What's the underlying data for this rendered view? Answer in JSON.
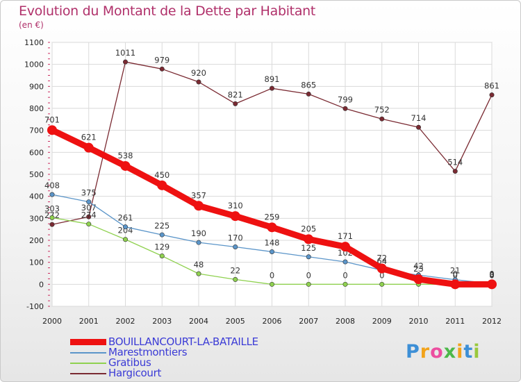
{
  "title": "Evolution du Montant de la Dette par Habitant",
  "unit": "(en €)",
  "chart_data": {
    "type": "line",
    "x": [
      "2000",
      "2001",
      "2002",
      "2003",
      "2004",
      "2005",
      "2006",
      "2007",
      "2008",
      "2009",
      "2010",
      "2011",
      "2012"
    ],
    "ylim": [
      -100,
      1100
    ],
    "yticks": [
      -100,
      0,
      100,
      200,
      300,
      400,
      500,
      600,
      700,
      800,
      900,
      1000,
      1100
    ],
    "grid": true,
    "legend_position": "bottom-left",
    "series": [
      {
        "name": "Hargicourt",
        "color": "#7a2a32",
        "values": [
          272,
          307,
          1011,
          979,
          920,
          821,
          891,
          865,
          799,
          752,
          714,
          514,
          861
        ],
        "labels": [
          "272",
          "307",
          "1011",
          "979",
          "920",
          "821",
          "891",
          "865",
          "799",
          "752",
          "714",
          "514",
          "861"
        ]
      },
      {
        "name": "Gratibus",
        "color": "#8fd14f",
        "values": [
          303,
          274,
          204,
          129,
          48,
          22,
          0,
          0,
          0,
          0,
          0,
          0,
          0
        ],
        "labels": [
          "303",
          "274",
          "204",
          "129",
          "48",
          "22",
          "0",
          "0",
          "0",
          "0",
          "0",
          "0",
          "0"
        ]
      },
      {
        "name": "Marestmontiers",
        "color": "#5b95c9",
        "values": [
          408,
          375,
          261,
          225,
          190,
          170,
          148,
          125,
          102,
          64,
          42,
          21,
          3
        ],
        "labels": [
          "408",
          "375",
          "261",
          "225",
          "190",
          "170",
          "148",
          "125",
          "102",
          "64",
          "42",
          "21",
          "3"
        ]
      },
      {
        "name": "BOUILLANCOURT-LA-BATAILLE",
        "color": "#ee1111",
        "values": [
          701,
          621,
          538,
          450,
          357,
          310,
          259,
          205,
          171,
          72,
          23,
          0,
          0
        ],
        "labels": [
          "701",
          "621",
          "538",
          "450",
          "357",
          "310",
          "259",
          "205",
          "171",
          "72",
          "23",
          "0",
          "0"
        ]
      }
    ]
  },
  "legend": [
    {
      "label": "BOUILLANCOURT-LA-BATAILLE",
      "color": "#ee1111"
    },
    {
      "label": "Marestmontiers",
      "color": "#5b95c9"
    },
    {
      "label": "Gratibus",
      "color": "#8fd14f"
    },
    {
      "label": "Hargicourt",
      "color": "#7a2a32"
    }
  ],
  "logo": {
    "letters": [
      "P",
      "r",
      "o",
      "x",
      "i",
      "t",
      "i"
    ],
    "colors": [
      "#3d8fd6",
      "#f2a31b",
      "#ec4ea0",
      "#4cb84a",
      "#f2a31b",
      "#3d8fd6",
      "#9ac83c"
    ]
  }
}
